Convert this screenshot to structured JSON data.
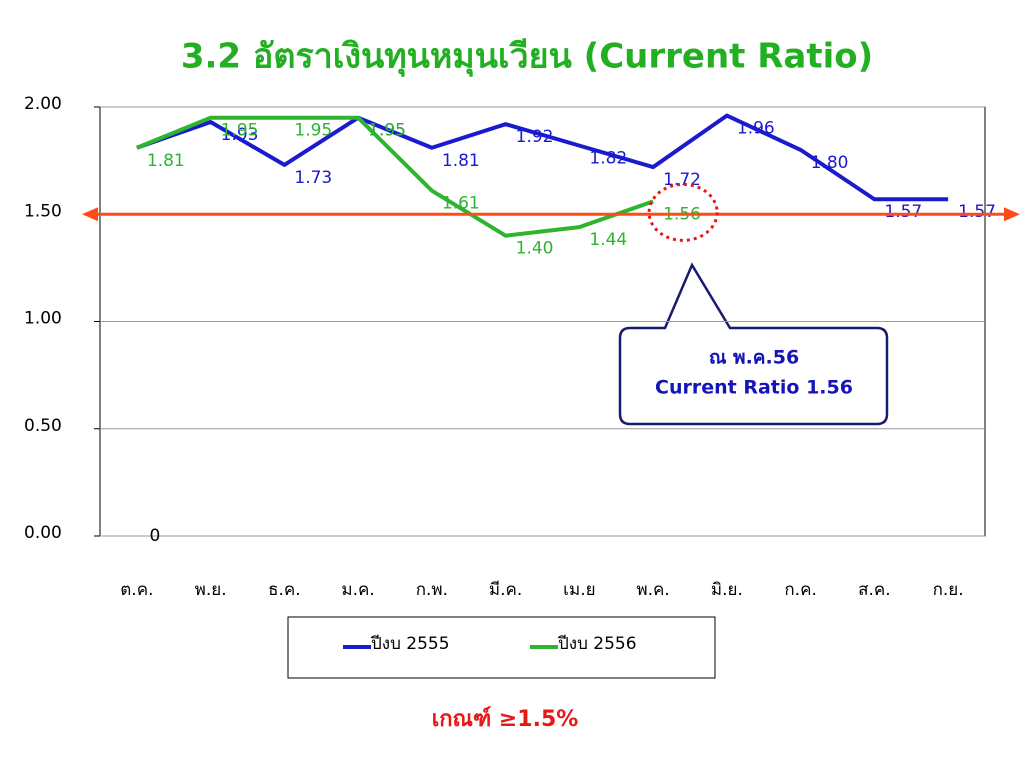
{
  "chart_data": {
    "type": "line",
    "title": "3.2 อัตราเงินทุนหมุนเวียน (Current Ratio)",
    "categories": [
      "ต.ค.",
      "พ.ย.",
      "ธ.ค.",
      "ม.ค.",
      "ก.พ.",
      "มี.ค.",
      "เม.ย",
      "พ.ค.",
      "มิ.ย.",
      "ก.ค.",
      "ส.ค.",
      "ก.ย."
    ],
    "series": [
      {
        "name": "ปีงบ 2555",
        "color": "#1a1ad0",
        "values": [
          1.81,
          1.93,
          1.73,
          1.95,
          1.81,
          1.92,
          1.82,
          1.72,
          1.96,
          1.8,
          1.57,
          1.57
        ],
        "value_labels": [
          null,
          "1.93",
          "1.73",
          "1.95",
          "1.81",
          "1.92",
          "1.82",
          "1.72",
          "1.96",
          "1.80",
          "1.57",
          "1.57"
        ]
      },
      {
        "name": "ปีงบ 2556",
        "color": "#2db52d",
        "values": [
          1.81,
          1.95,
          1.95,
          1.95,
          1.61,
          1.4,
          1.44,
          1.56,
          null,
          null,
          null,
          null
        ],
        "value_labels": [
          "1.81",
          "1.95",
          "1.95",
          "1.95",
          "1.61",
          "1.40",
          "1.44",
          "1.56",
          null,
          null,
          null,
          null
        ]
      }
    ],
    "ylim": [
      0,
      2
    ],
    "yticks": [
      {
        "value": 0,
        "label": "0.00"
      },
      {
        "value": 0.5,
        "label": "0.50"
      },
      {
        "value": 1,
        "label": "1.00"
      },
      {
        "value": 1.5,
        "label": "1.50"
      },
      {
        "value": 2,
        "label": "2.00"
      }
    ],
    "grid": true,
    "reference_line": {
      "value": 1.5,
      "color": "#ff4a1a"
    },
    "stray_label": {
      "text": "0",
      "category": "ต.ค.",
      "value": 0
    },
    "callout": {
      "line1": "ณ พ.ค.56",
      "line2": "Current Ratio 1.56"
    },
    "criterion": "เกณฑ์ ≥1.5%"
  }
}
